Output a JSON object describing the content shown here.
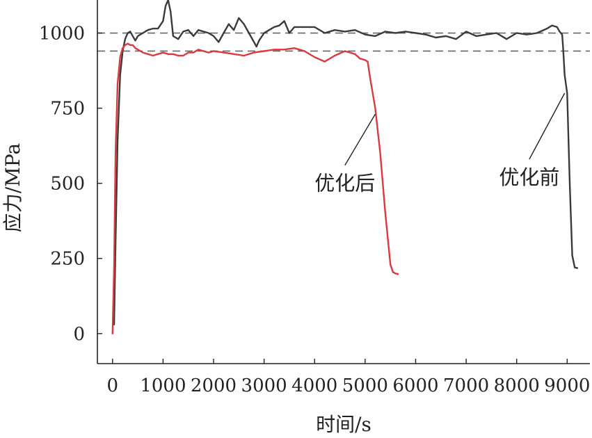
{
  "chart_data": {
    "type": "line",
    "xlabel": "时间/s",
    "ylabel": "应力/MPa",
    "xlim": [
      -300,
      9450
    ],
    "ylim": [
      -100,
      1110
    ],
    "x_ticks": [
      0,
      1000,
      2000,
      3000,
      4000,
      5000,
      6000,
      7000,
      8000,
      9000
    ],
    "y_ticks": [
      0,
      250,
      500,
      750,
      1000
    ],
    "reference_lines": [
      1000,
      940
    ],
    "series": [
      {
        "name": "优化前",
        "color": "#3a3a3a",
        "x": [
          30,
          60,
          100,
          150,
          200,
          250,
          300,
          350,
          400,
          450,
          500,
          600,
          700,
          800,
          900,
          1000,
          1050,
          1100,
          1150,
          1200,
          1300,
          1400,
          1500,
          1600,
          1700,
          1800,
          1900,
          2000,
          2100,
          2200,
          2300,
          2400,
          2500,
          2600,
          2700,
          2800,
          2850,
          2900,
          3000,
          3100,
          3200,
          3300,
          3400,
          3500,
          3600,
          3800,
          4000,
          4200,
          4400,
          4600,
          4800,
          5000,
          5200,
          5400,
          5600,
          5800,
          6000,
          6200,
          6400,
          6600,
          6800,
          7000,
          7200,
          7400,
          7600,
          7800,
          8000,
          8200,
          8400,
          8600,
          8700,
          8800,
          8850,
          8900,
          8920,
          8950,
          9000,
          9050,
          9100,
          9150,
          9200
        ],
        "y": [
          30,
          300,
          640,
          860,
          940,
          980,
          1000,
          1005,
          990,
          975,
          990,
          1000,
          1010,
          1015,
          1015,
          1040,
          1090,
          1110,
          1070,
          990,
          980,
          1005,
          1010,
          990,
          1010,
          1005,
          1000,
          990,
          970,
          1000,
          1030,
          1010,
          1050,
          1030,
          1000,
          970,
          955,
          975,
          1000,
          1010,
          1020,
          1025,
          1040,
          1000,
          1020,
          1020,
          1020,
          1000,
          1010,
          1005,
          1010,
          995,
          990,
          1005,
          1000,
          1005,
          1000,
          995,
          985,
          990,
          980,
          1005,
          990,
          995,
          1000,
          980,
          1000,
          995,
          1000,
          1015,
          1025,
          1020,
          1005,
          995,
          950,
          860,
          800,
          500,
          260,
          220,
          218
        ]
      },
      {
        "name": "优化后",
        "color": "#d9393f",
        "x": [
          0,
          30,
          60,
          100,
          150,
          200,
          250,
          300,
          350,
          400,
          450,
          500,
          600,
          700,
          800,
          900,
          1000,
          1100,
          1200,
          1300,
          1400,
          1500,
          1600,
          1700,
          1800,
          1900,
          2000,
          2200,
          2400,
          2600,
          2800,
          3000,
          3200,
          3400,
          3600,
          3800,
          4000,
          4200,
          4400,
          4600,
          4800,
          4900,
          5000,
          5050,
          5100,
          5200,
          5300,
          5400,
          5500,
          5550,
          5600,
          5650
        ],
        "y": [
          0,
          220,
          600,
          830,
          920,
          950,
          960,
          965,
          960,
          960,
          950,
          945,
          935,
          930,
          925,
          930,
          935,
          930,
          930,
          925,
          925,
          935,
          935,
          945,
          940,
          935,
          940,
          935,
          930,
          925,
          935,
          940,
          945,
          945,
          950,
          940,
          920,
          905,
          925,
          940,
          930,
          915,
          910,
          905,
          850,
          750,
          600,
          400,
          230,
          205,
          200,
          198
        ]
      }
    ],
    "annotations": [
      {
        "text": "优化后",
        "series_index": 1,
        "point": [
          5200,
          730
        ],
        "label_at": [
          4600,
          560
        ]
      },
      {
        "text": "优化前",
        "series_index": 0,
        "point": [
          8950,
          800
        ],
        "label_at": [
          8250,
          580
        ]
      }
    ]
  }
}
